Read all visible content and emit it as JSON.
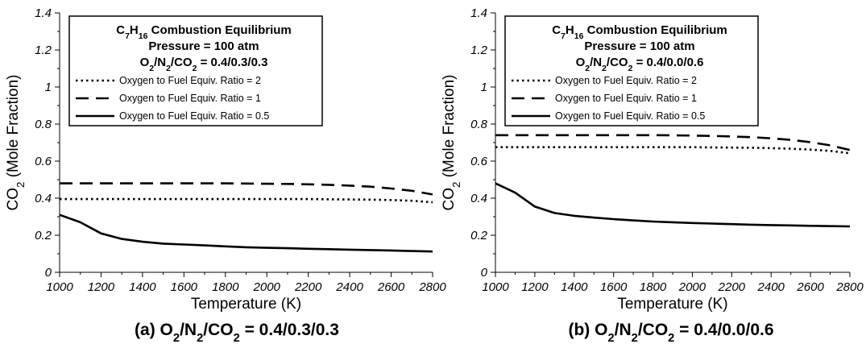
{
  "chart_data": [
    {
      "type": "line",
      "title_main": "C7H16 Combustion Equilibrium",
      "title_pressure": "Pressure = 100 atm",
      "title_mix": "O2/N2/CO2 = 0.4/0.3/0.3",
      "caption": "(a) O2/N2/CO2 = 0.4/0.3/0.3",
      "xlabel": "Temperature (K)",
      "ylabel": "CO2 (Mole Fraction)",
      "xlim": [
        1000,
        2800
      ],
      "ylim": [
        0,
        1.4
      ],
      "xticks": [
        "1000",
        "1200",
        "1400",
        "1600",
        "1800",
        "2000",
        "2200",
        "2400",
        "2600",
        "2800"
      ],
      "yticks": [
        "0",
        "0.2",
        "0.4",
        "0.6",
        "0.8",
        "1",
        "1.2",
        "1.4"
      ],
      "legend_position": "top-left",
      "grid": false,
      "series": [
        {
          "name": "Oxygen to Fuel Equiv. Ratio = 2",
          "style": "dotted",
          "x": [
            1000,
            1100,
            1200,
            1300,
            1400,
            1500,
            1600,
            1700,
            1800,
            1900,
            2000,
            2100,
            2200,
            2300,
            2400,
            2500,
            2600,
            2700,
            2800
          ],
          "values": [
            0.395,
            0.395,
            0.395,
            0.395,
            0.395,
            0.395,
            0.395,
            0.395,
            0.395,
            0.395,
            0.395,
            0.395,
            0.395,
            0.394,
            0.393,
            0.392,
            0.39,
            0.386,
            0.378
          ]
        },
        {
          "name": "Oxygen to Fuel Equiv. Ratio = 1",
          "style": "dashed",
          "x": [
            1000,
            1100,
            1200,
            1300,
            1400,
            1500,
            1600,
            1700,
            1800,
            1900,
            2000,
            2100,
            2200,
            2300,
            2400,
            2500,
            2600,
            2700,
            2800
          ],
          "values": [
            0.48,
            0.48,
            0.48,
            0.48,
            0.48,
            0.48,
            0.48,
            0.48,
            0.48,
            0.479,
            0.478,
            0.477,
            0.475,
            0.472,
            0.468,
            0.462,
            0.452,
            0.44,
            0.42
          ]
        },
        {
          "name": "Oxygen to Fuel Equiv. Ratio = 0.5",
          "style": "solid",
          "x": [
            1000,
            1100,
            1200,
            1300,
            1400,
            1500,
            1600,
            1700,
            1800,
            1900,
            2000,
            2100,
            2200,
            2300,
            2400,
            2500,
            2600,
            2700,
            2800
          ],
          "values": [
            0.31,
            0.27,
            0.21,
            0.18,
            0.165,
            0.155,
            0.15,
            0.145,
            0.14,
            0.135,
            0.132,
            0.13,
            0.127,
            0.125,
            0.122,
            0.12,
            0.118,
            0.115,
            0.112
          ]
        }
      ]
    },
    {
      "type": "line",
      "title_main": "C7H16 Combustion Equilibrium",
      "title_pressure": "Pressure = 100 atm",
      "title_mix": "O2/N2/CO2 = 0.4/0.0/0.6",
      "caption": "(b) O2/N2/CO2 = 0.4/0.0/0.6",
      "xlabel": "Temperature (K)",
      "ylabel": "CO2 (Mole Fraction)",
      "xlim": [
        1000,
        2800
      ],
      "ylim": [
        0,
        1.4
      ],
      "xticks": [
        "1000",
        "1200",
        "1400",
        "1600",
        "1800",
        "2000",
        "2200",
        "2400",
        "2600",
        "2800"
      ],
      "yticks": [
        "0",
        "0.2",
        "0.4",
        "0.6",
        "0.8",
        "1",
        "1.2",
        "1.4"
      ],
      "legend_position": "top-left",
      "grid": false,
      "series": [
        {
          "name": "Oxygen to Fuel Equiv. Ratio = 2",
          "style": "dotted",
          "x": [
            1000,
            1100,
            1200,
            1300,
            1400,
            1500,
            1600,
            1700,
            1800,
            1900,
            2000,
            2100,
            2200,
            2300,
            2400,
            2500,
            2600,
            2700,
            2800
          ],
          "values": [
            0.675,
            0.675,
            0.675,
            0.675,
            0.675,
            0.675,
            0.675,
            0.675,
            0.675,
            0.675,
            0.675,
            0.674,
            0.673,
            0.672,
            0.67,
            0.667,
            0.662,
            0.655,
            0.642
          ]
        },
        {
          "name": "Oxygen to Fuel Equiv. Ratio = 1",
          "style": "dashed",
          "x": [
            1000,
            1100,
            1200,
            1300,
            1400,
            1500,
            1600,
            1700,
            1800,
            1900,
            2000,
            2100,
            2200,
            2300,
            2400,
            2500,
            2600,
            2700,
            2800
          ],
          "values": [
            0.74,
            0.74,
            0.74,
            0.74,
            0.74,
            0.74,
            0.74,
            0.74,
            0.74,
            0.739,
            0.738,
            0.736,
            0.733,
            0.729,
            0.723,
            0.715,
            0.702,
            0.685,
            0.66
          ]
        },
        {
          "name": "Oxygen to Fuel Equiv. Ratio = 0.5",
          "style": "solid",
          "x": [
            1000,
            1100,
            1200,
            1300,
            1400,
            1500,
            1600,
            1700,
            1800,
            1900,
            2000,
            2100,
            2200,
            2300,
            2400,
            2500,
            2600,
            2700,
            2800
          ],
          "values": [
            0.48,
            0.43,
            0.355,
            0.32,
            0.305,
            0.295,
            0.287,
            0.28,
            0.274,
            0.27,
            0.266,
            0.263,
            0.26,
            0.257,
            0.255,
            0.253,
            0.251,
            0.249,
            0.248
          ]
        }
      ]
    }
  ]
}
